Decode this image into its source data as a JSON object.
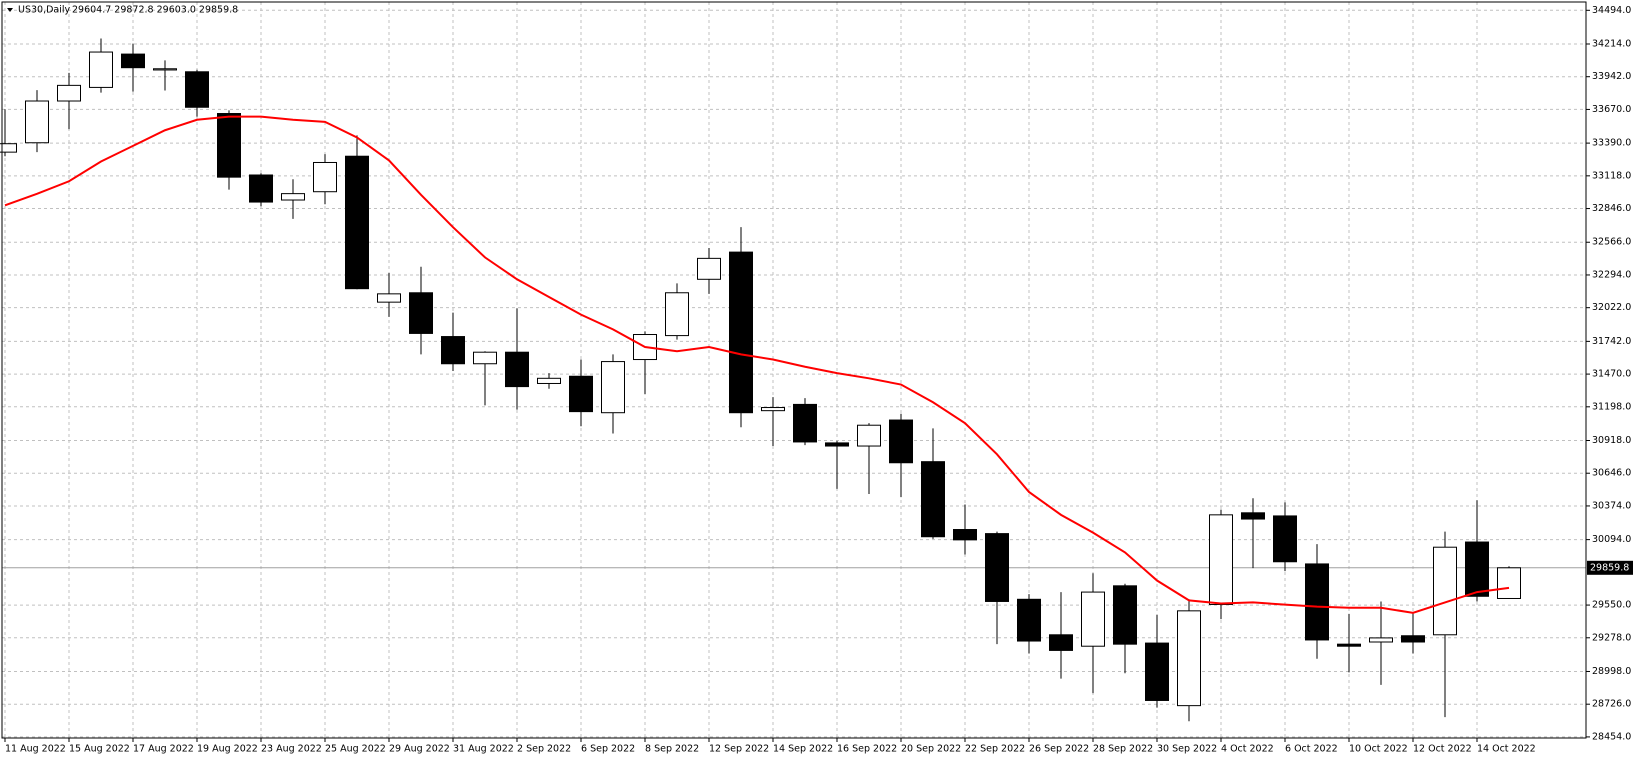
{
  "chart_data": {
    "type": "candlestick",
    "title": "US30,Daily",
    "ohlc_text": "29604.7 29872.8 29603.0 29859.8",
    "categories": [
      "11 Aug 2022",
      null,
      "15 Aug 2022",
      null,
      "17 Aug 2022",
      null,
      "19 Aug 2022",
      null,
      "23 Aug 2022",
      null,
      "25 Aug 2022",
      null,
      "29 Aug 2022",
      null,
      "31 Aug 2022",
      null,
      "2 Sep 2022",
      null,
      "6 Sep 2022",
      null,
      "8 Sep 2022",
      null,
      "12 Sep 2022",
      null,
      "14 Sep 2022",
      null,
      "16 Sep 2022",
      null,
      "20 Sep 2022",
      null,
      "22 Sep 2022",
      null,
      "26 Sep 2022",
      null,
      "28 Sep 2022",
      null,
      "30 Sep 2022",
      null,
      "4 Oct 2022",
      null,
      "6 Oct 2022",
      null,
      "10 Oct 2022",
      null,
      "12 Oct 2022",
      null,
      "14 Oct 2022",
      null
    ],
    "open": [
      33315,
      33393,
      33740,
      33853,
      34130,
      33998,
      33983,
      33636,
      33125,
      32917,
      32986,
      33281,
      32068,
      32146,
      31782,
      31556,
      31652,
      31392,
      31452,
      31149,
      31591,
      31790,
      32258,
      32484,
      31166,
      31218,
      30898,
      30872,
      31088,
      30742,
      30178,
      30144,
      29598,
      29303,
      29208,
      29710,
      29234,
      28714,
      29555,
      30317,
      30291,
      29892,
      29225,
      29243,
      29295,
      29303,
      30074,
      29604.7
    ],
    "high": [
      33671,
      33830,
      33974,
      34260,
      34217,
      34078,
      34000,
      33662,
      33140,
      33090,
      33298,
      33454,
      32310,
      32362,
      31981,
      31660,
      32016,
      31478,
      31591,
      31634,
      31825,
      32224,
      32518,
      32692,
      31279,
      31270,
      30915,
      31062,
      31140,
      31019,
      30386,
      30161,
      29641,
      29658,
      29814,
      29727,
      29468,
      29598,
      30343,
      30438,
      30404,
      30057,
      29477,
      29580,
      29485,
      30161,
      30421,
      29872.8
    ],
    "low": [
      33281,
      33315,
      33506,
      33810,
      33818,
      33827,
      33610,
      33003,
      32865,
      32760,
      32882,
      32175,
      31946,
      31634,
      31496,
      31210,
      31175,
      31348,
      31036,
      30976,
      31305,
      31756,
      32137,
      31028,
      30872,
      30880,
      30516,
      30473,
      30447,
      30100,
      29970,
      29225,
      29147,
      28939,
      28818,
      28983,
      28697,
      28584,
      29433,
      29857,
      29832,
      29104,
      28991,
      28887,
      29147,
      28619,
      29580,
      29603
    ],
    "close": [
      33385,
      33740,
      33870,
      34147,
      34017,
      34008,
      33688,
      33107,
      32900,
      32970,
      33229,
      32180,
      32137,
      31808,
      31556,
      31652,
      31366,
      31435,
      31158,
      31574,
      31799,
      32146,
      32432,
      31149,
      31192,
      30906,
      30872,
      31045,
      30733,
      30118,
      30092,
      29580,
      29251,
      29173,
      29658,
      29225,
      28757,
      29502,
      30300,
      30265,
      29910,
      29260,
      29208,
      29277,
      29243,
      30031,
      29623,
      29859.8
    ],
    "up_color": "#ffffff",
    "down_color": "#000000",
    "ma": {
      "color": "#ff0000",
      "values": [
        32873,
        32969,
        33073,
        33237,
        33367,
        33497,
        33584,
        33610,
        33610,
        33584,
        33567,
        33437,
        33246,
        32960,
        32691,
        32440,
        32258,
        32111,
        31964,
        31842,
        31695,
        31660,
        31695,
        31634,
        31591,
        31531,
        31478,
        31435,
        31383,
        31236,
        31062,
        30803,
        30490,
        30300,
        30152,
        29988,
        29754,
        29589,
        29563,
        29572,
        29554,
        29537,
        29528,
        29528,
        29485,
        29572,
        29658,
        29693
      ]
    },
    "last_price": 29859.8,
    "ylim": [
      28445,
      34563
    ],
    "yticks": [
      {
        "value": 34494,
        "label": "34494.0"
      },
      {
        "value": 34214,
        "label": "34214.0"
      },
      {
        "value": 33942,
        "label": "33942.0"
      },
      {
        "value": 33670,
        "label": "33670.0"
      },
      {
        "value": 33390,
        "label": "33390.0"
      },
      {
        "value": 33118,
        "label": "33118.0"
      },
      {
        "value": 32846,
        "label": "32846.0"
      },
      {
        "value": 32566,
        "label": "32566.0"
      },
      {
        "value": 32294,
        "label": "32294.0"
      },
      {
        "value": 32022,
        "label": "32022.0"
      },
      {
        "value": 31742,
        "label": "31742.0"
      },
      {
        "value": 31470,
        "label": "31470.0"
      },
      {
        "value": 31198,
        "label": "31198.0"
      },
      {
        "value": 30918,
        "label": "30918.0"
      },
      {
        "value": 30646,
        "label": "30646.0"
      },
      {
        "value": 30374,
        "label": "30374.0"
      },
      {
        "value": 30094,
        "label": "30094.0"
      },
      {
        "value": 29550,
        "label": "29550.0"
      },
      {
        "value": 29278,
        "label": "29278.0"
      },
      {
        "value": 28998,
        "label": "28998.0"
      },
      {
        "value": 28726,
        "label": "28726.0"
      },
      {
        "value": 28454,
        "label": "28454.0"
      }
    ],
    "grid": true
  }
}
